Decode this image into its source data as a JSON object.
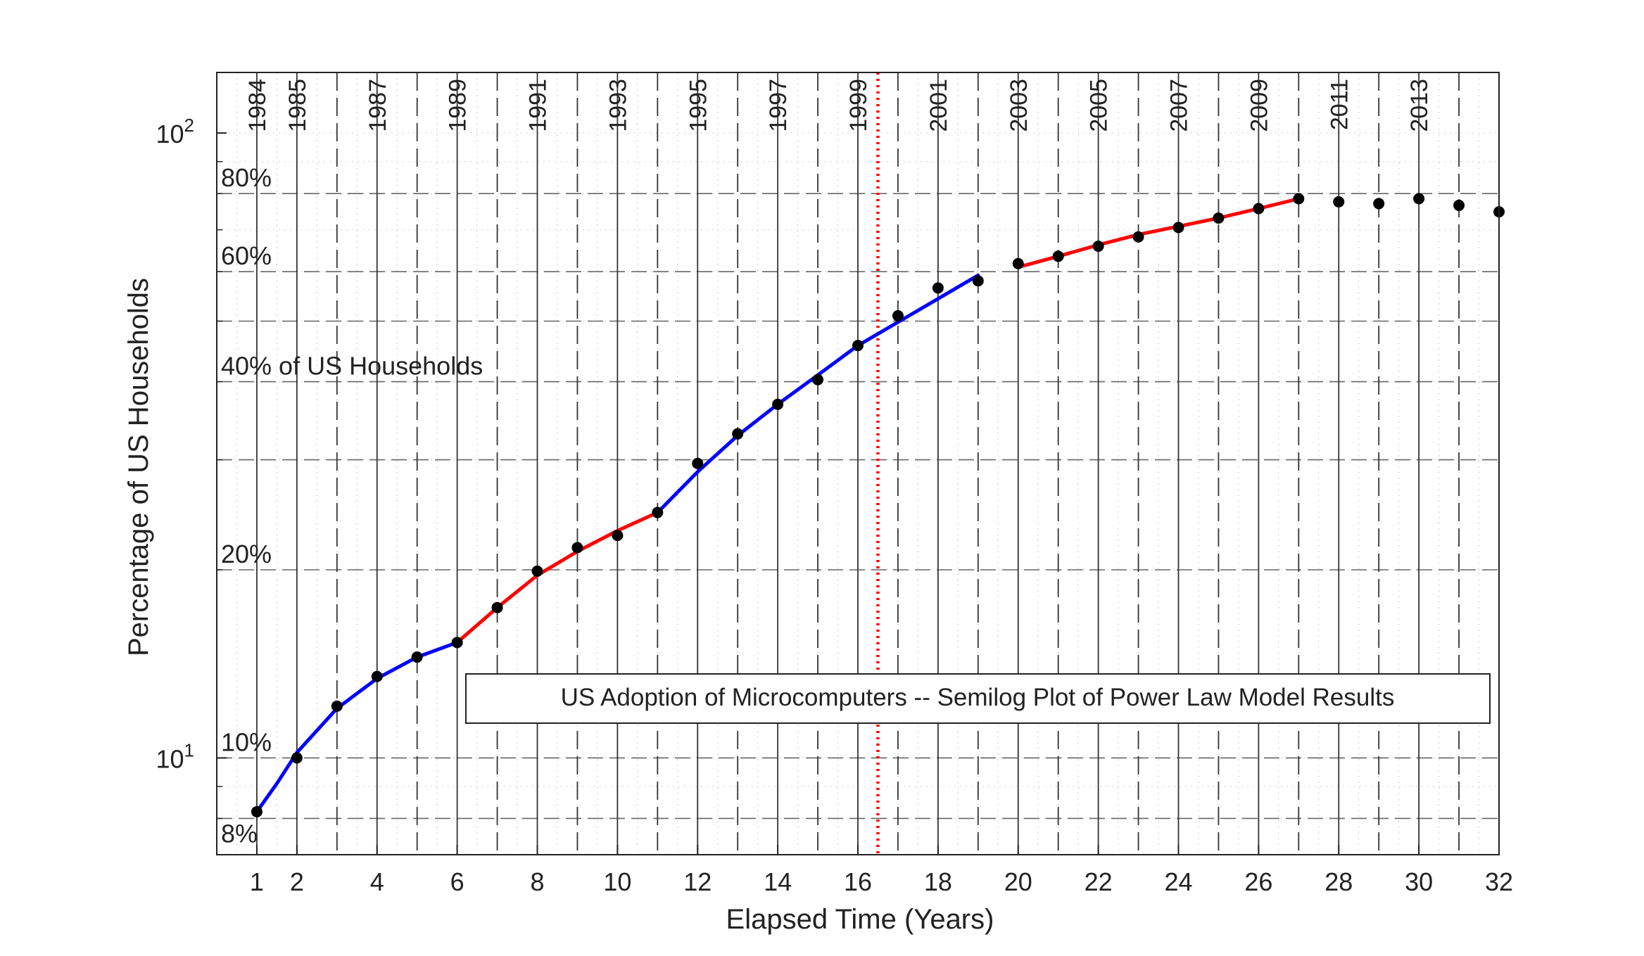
{
  "chart_data": {
    "type": "line",
    "title": "US Adoption of Microcomputers -- Semilog Plot of Power Law Model Results",
    "xlabel": "Elapsed Time (Years)",
    "ylabel": "Percentage of US Households",
    "xlim": [
      0,
      32
    ],
    "ylim": [
      7,
      125
    ],
    "yscale": "log",
    "x_ticks": [
      "1",
      "2",
      "4",
      "6",
      "8",
      "10",
      "12",
      "14",
      "16",
      "18",
      "20",
      "22",
      "24",
      "26",
      "28",
      "30",
      "32"
    ],
    "x_tick_values": [
      1,
      2,
      4,
      6,
      8,
      10,
      12,
      14,
      16,
      18,
      20,
      22,
      24,
      26,
      28,
      30,
      32
    ],
    "y_ticks": [
      {
        "value": 10,
        "base": "10",
        "exp": "1"
      },
      {
        "value": 100,
        "base": "10",
        "exp": "2"
      }
    ],
    "grid": "on (major and minor, dotted)",
    "year_markers": [
      {
        "x": 1,
        "label": "1984",
        "style": "solid"
      },
      {
        "x": 2,
        "label": "1985",
        "style": "solid"
      },
      {
        "x": 3,
        "label": "",
        "style": "dashed"
      },
      {
        "x": 4,
        "label": "1987",
        "style": "solid"
      },
      {
        "x": 5,
        "label": "",
        "style": "dashed"
      },
      {
        "x": 6,
        "label": "1989",
        "style": "solid"
      },
      {
        "x": 7,
        "label": "",
        "style": "dashed"
      },
      {
        "x": 8,
        "label": "1991",
        "style": "solid"
      },
      {
        "x": 9,
        "label": "",
        "style": "dashed"
      },
      {
        "x": 10,
        "label": "1993",
        "style": "solid"
      },
      {
        "x": 11,
        "label": "",
        "style": "dashed"
      },
      {
        "x": 12,
        "label": "1995",
        "style": "solid"
      },
      {
        "x": 13,
        "label": "",
        "style": "dashed"
      },
      {
        "x": 14,
        "label": "1997",
        "style": "solid"
      },
      {
        "x": 15,
        "label": "",
        "style": "dashed"
      },
      {
        "x": 16,
        "label": "1999",
        "style": "solid"
      },
      {
        "x": 17,
        "label": "",
        "style": "dashed"
      },
      {
        "x": 18,
        "label": "2001",
        "style": "solid"
      },
      {
        "x": 19,
        "label": "",
        "style": "dashed"
      },
      {
        "x": 20,
        "label": "2003",
        "style": "solid"
      },
      {
        "x": 21,
        "label": "",
        "style": "dashed"
      },
      {
        "x": 22,
        "label": "2005",
        "style": "solid"
      },
      {
        "x": 23,
        "label": "",
        "style": "dashed"
      },
      {
        "x": 24,
        "label": "2007",
        "style": "solid"
      },
      {
        "x": 25,
        "label": "",
        "style": "dashed"
      },
      {
        "x": 26,
        "label": "2009",
        "style": "solid"
      },
      {
        "x": 27,
        "label": "",
        "style": "dashed"
      },
      {
        "x": 28,
        "label": "2011",
        "style": "solid"
      },
      {
        "x": 29,
        "label": "",
        "style": "dashed"
      },
      {
        "x": 30,
        "label": "2013",
        "style": "solid"
      },
      {
        "x": 31,
        "label": "",
        "style": "dashed"
      }
    ],
    "percent_lines": [
      {
        "value": 80,
        "label": "80%"
      },
      {
        "value": 60,
        "label": "60%"
      },
      {
        "value": 40,
        "label": "40% of US Households"
      },
      {
        "value": 20,
        "label": "20%"
      },
      {
        "value": 10,
        "label": "10%"
      },
      {
        "value": 8,
        "label": "8%"
      }
    ],
    "dashed_horizontal_values": [
      8,
      10,
      20,
      30,
      40,
      50,
      60,
      80
    ],
    "marker_line": {
      "x": 16.5,
      "color": "#ff0000",
      "style": "dotted"
    },
    "series": [
      {
        "type": "scatter",
        "color": "#000000",
        "x": [
          1,
          2,
          3,
          4,
          5,
          6,
          7,
          8,
          9,
          10,
          11,
          12,
          13,
          14,
          15,
          16,
          17,
          18,
          19,
          20,
          21,
          22,
          23,
          24,
          25,
          26,
          27,
          28,
          29,
          30,
          31,
          32
        ],
        "y": [
          8.2,
          10.0,
          12.1,
          13.5,
          14.5,
          15.3,
          17.4,
          19.9,
          21.7,
          22.7,
          24.7,
          29.6,
          33.0,
          36.8,
          40.3,
          45.7,
          51.0,
          56.5,
          58.0,
          61.8,
          63.5,
          65.9,
          68.2,
          70.6,
          73.1,
          75.7,
          78.5,
          77.6,
          77.1,
          78.5,
          76.6,
          74.8
        ]
      },
      {
        "type": "line",
        "color": "#0000ff",
        "x": [
          1,
          1.5,
          2,
          3,
          4,
          5,
          6
        ],
        "y": [
          8.2,
          9.1,
          10.2,
          12.0,
          13.4,
          14.5,
          15.3
        ]
      },
      {
        "type": "line",
        "color": "#ff0000",
        "x": [
          6,
          7,
          8,
          9,
          10,
          11
        ],
        "y": [
          15.3,
          17.4,
          19.6,
          21.4,
          23.1,
          24.7
        ]
      },
      {
        "type": "line",
        "color": "#0000ff",
        "x": [
          11,
          12,
          13,
          14,
          15,
          16,
          17,
          18,
          19
        ],
        "y": [
          24.7,
          28.7,
          32.8,
          36.8,
          41.0,
          45.7,
          49.8,
          54.3,
          59.2
        ]
      },
      {
        "type": "line",
        "color": "#ff0000",
        "x": [
          20,
          21,
          22,
          23,
          24,
          25,
          26,
          27
        ],
        "y": [
          61.0,
          63.5,
          66.2,
          68.8,
          70.9,
          73.1,
          75.7,
          78.5
        ]
      }
    ]
  }
}
